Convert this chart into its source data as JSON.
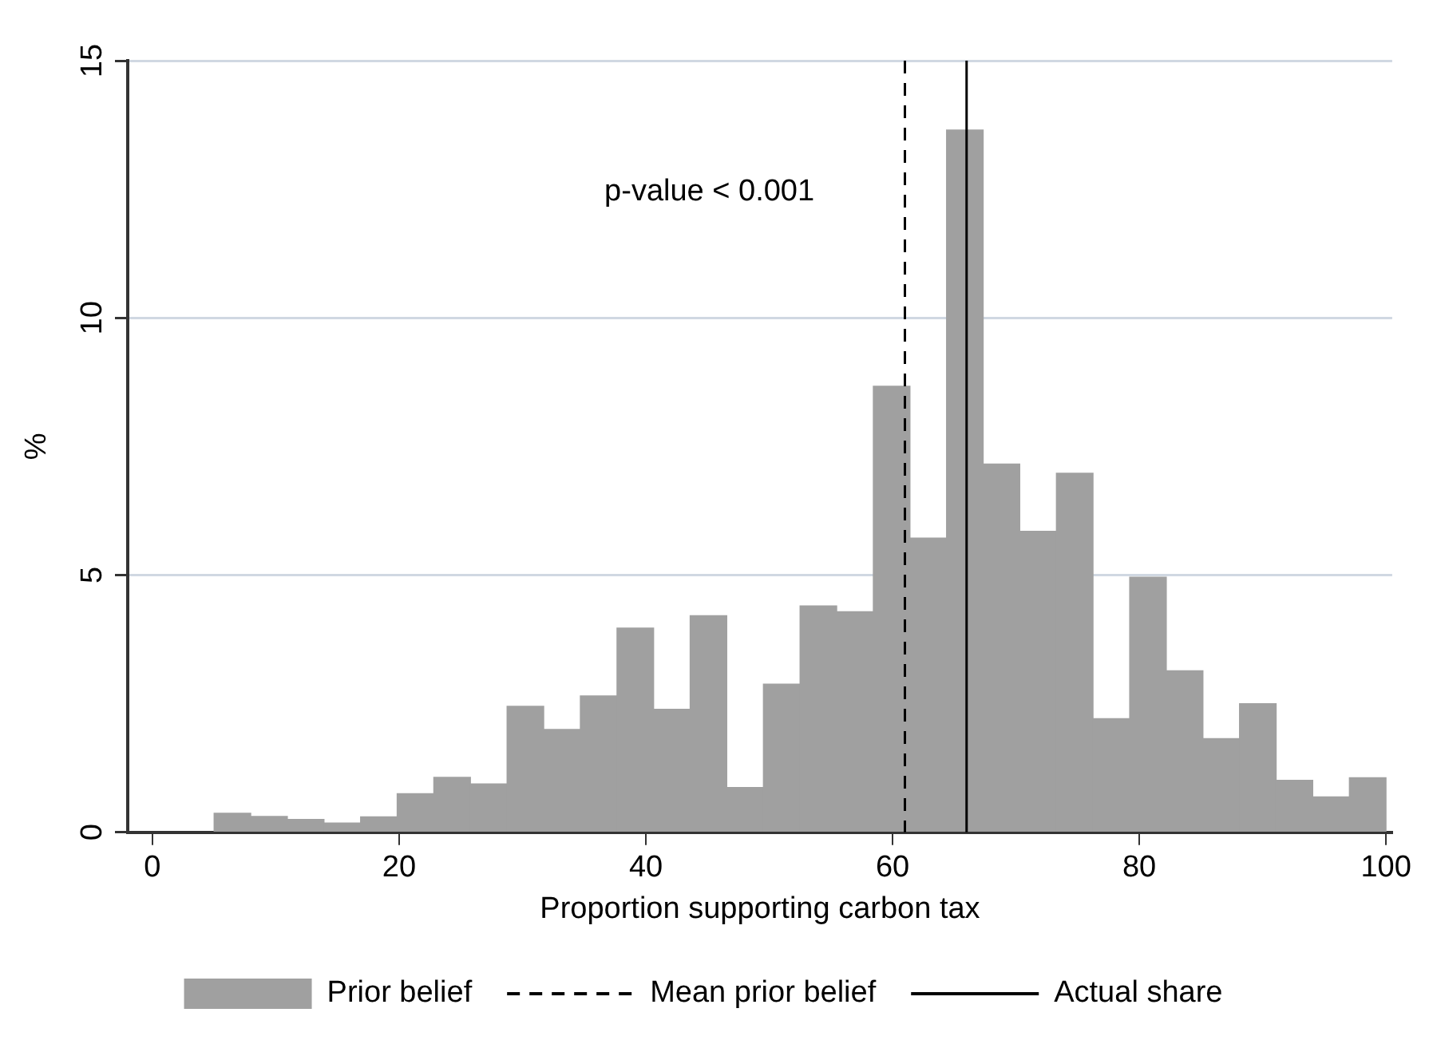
{
  "chart_data": {
    "type": "histogram",
    "xlabel": "Proportion supporting carbon tax",
    "ylabel": "%",
    "bins": [
      5,
      7.97,
      10.94,
      13.91,
      16.88,
      19.84,
      22.81,
      25.78,
      28.75,
      31.72,
      34.69,
      37.66,
      40.63,
      43.59,
      46.56,
      49.53,
      52.5,
      55.47,
      58.44,
      61.41,
      64.38,
      67.34,
      70.31,
      73.28,
      76.25,
      79.22,
      82.19,
      85.16,
      88.13,
      91.09,
      94.06,
      97.03,
      100
    ],
    "series": [
      {
        "name": "Prior belief",
        "color": "#a0a0a0",
        "values": [
          0.37,
          0.31,
          0.25,
          0.18,
          0.3,
          0.75,
          1.07,
          0.94,
          2.45,
          2.0,
          2.65,
          3.97,
          2.39,
          4.21,
          0.87,
          2.88,
          4.4,
          4.29,
          8.67,
          5.72,
          13.65,
          7.16,
          5.85,
          6.98,
          2.21,
          4.96,
          3.14,
          1.82,
          2.5,
          1.01,
          0.69,
          1.06
        ]
      }
    ],
    "xlim": [
      -2,
      100.5
    ],
    "xticks": [
      0,
      20,
      40,
      60,
      80,
      100
    ],
    "ylim": [
      0,
      15
    ],
    "yticks": [
      0,
      5,
      10,
      15
    ],
    "grid": "y",
    "legend": "bottom",
    "ref_lines": [
      {
        "axis": "x",
        "value": 61,
        "label": "Mean prior belief",
        "color": "#000000",
        "line_style": "dashed"
      },
      {
        "axis": "x",
        "value": 66,
        "label": "Actual share",
        "color": "#000000",
        "line_style": "solid"
      }
    ],
    "annotations": [
      "p-value < 0.001"
    ]
  }
}
